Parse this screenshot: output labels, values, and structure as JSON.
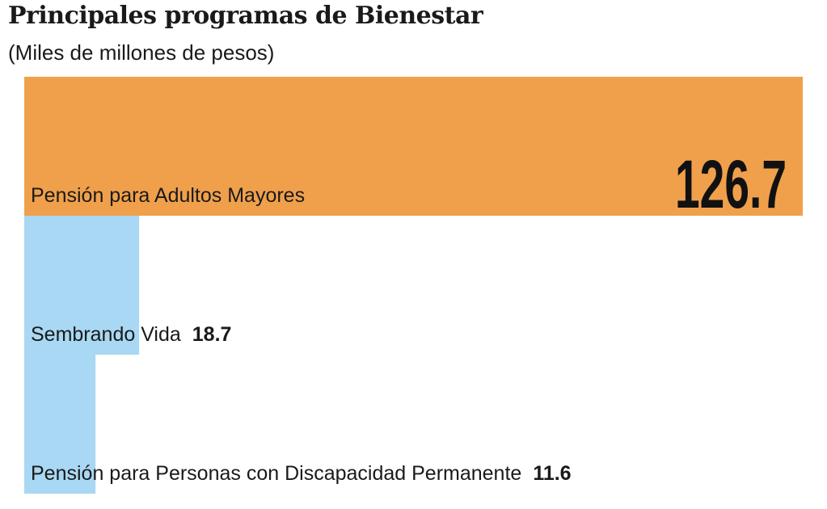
{
  "chart_data": {
    "type": "bar",
    "orientation": "horizontal",
    "title": "Principales programas de Bienestar",
    "subtitle": "(Miles de millones de pesos)",
    "categories": [
      "Pensión para Adultos Mayores",
      "Sembrando Vida",
      "Pensión para Personas con Discapacidad Permanente"
    ],
    "values": [
      126.7,
      18.7,
      11.6
    ],
    "value_labels": [
      "126.7",
      "18.7",
      "11.6"
    ],
    "colors": [
      "#f0a04b",
      "#a8d8f3",
      "#a8d8f3"
    ],
    "xlim": [
      0,
      126.7
    ],
    "grid": false,
    "legend": "none"
  }
}
